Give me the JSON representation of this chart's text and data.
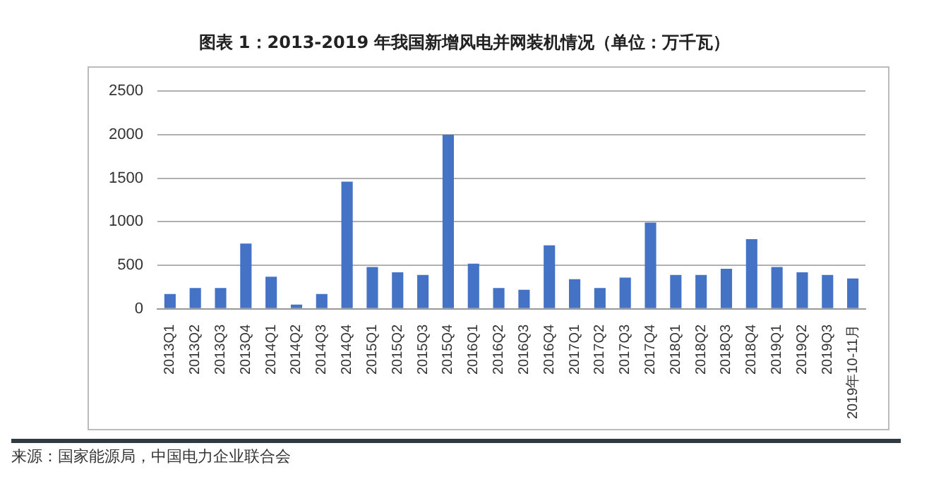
{
  "chart_data": {
    "type": "bar",
    "title": "图表 1：2013-2019 年我国新增风电并网装机情况（单位：万千瓦）",
    "categories": [
      "2013Q1",
      "2013Q2",
      "2013Q3",
      "2013Q4",
      "2014Q1",
      "2014Q2",
      "2014Q3",
      "2014Q4",
      "2015Q1",
      "2015Q2",
      "2015Q3",
      "2015Q4",
      "2016Q1",
      "2016Q2",
      "2016Q3",
      "2016Q4",
      "2017Q1",
      "2017Q2",
      "2017Q3",
      "2017Q4",
      "2018Q1",
      "2018Q2",
      "2018Q3",
      "2018Q4",
      "2019Q1",
      "2019Q2",
      "2019Q3",
      "2019年10-11月"
    ],
    "values": [
      170,
      240,
      240,
      750,
      370,
      50,
      170,
      1460,
      480,
      420,
      390,
      2000,
      520,
      240,
      220,
      730,
      340,
      240,
      360,
      990,
      390,
      390,
      460,
      800,
      480,
      420,
      390,
      350
    ],
    "color": "#4472c4",
    "ylim": [
      0,
      2500
    ],
    "yticks": [
      0,
      500,
      1000,
      1500,
      2000,
      2500
    ],
    "grid": "y",
    "annotations": [
      "来源：国家能源局，中国电力企业联合会"
    ]
  }
}
